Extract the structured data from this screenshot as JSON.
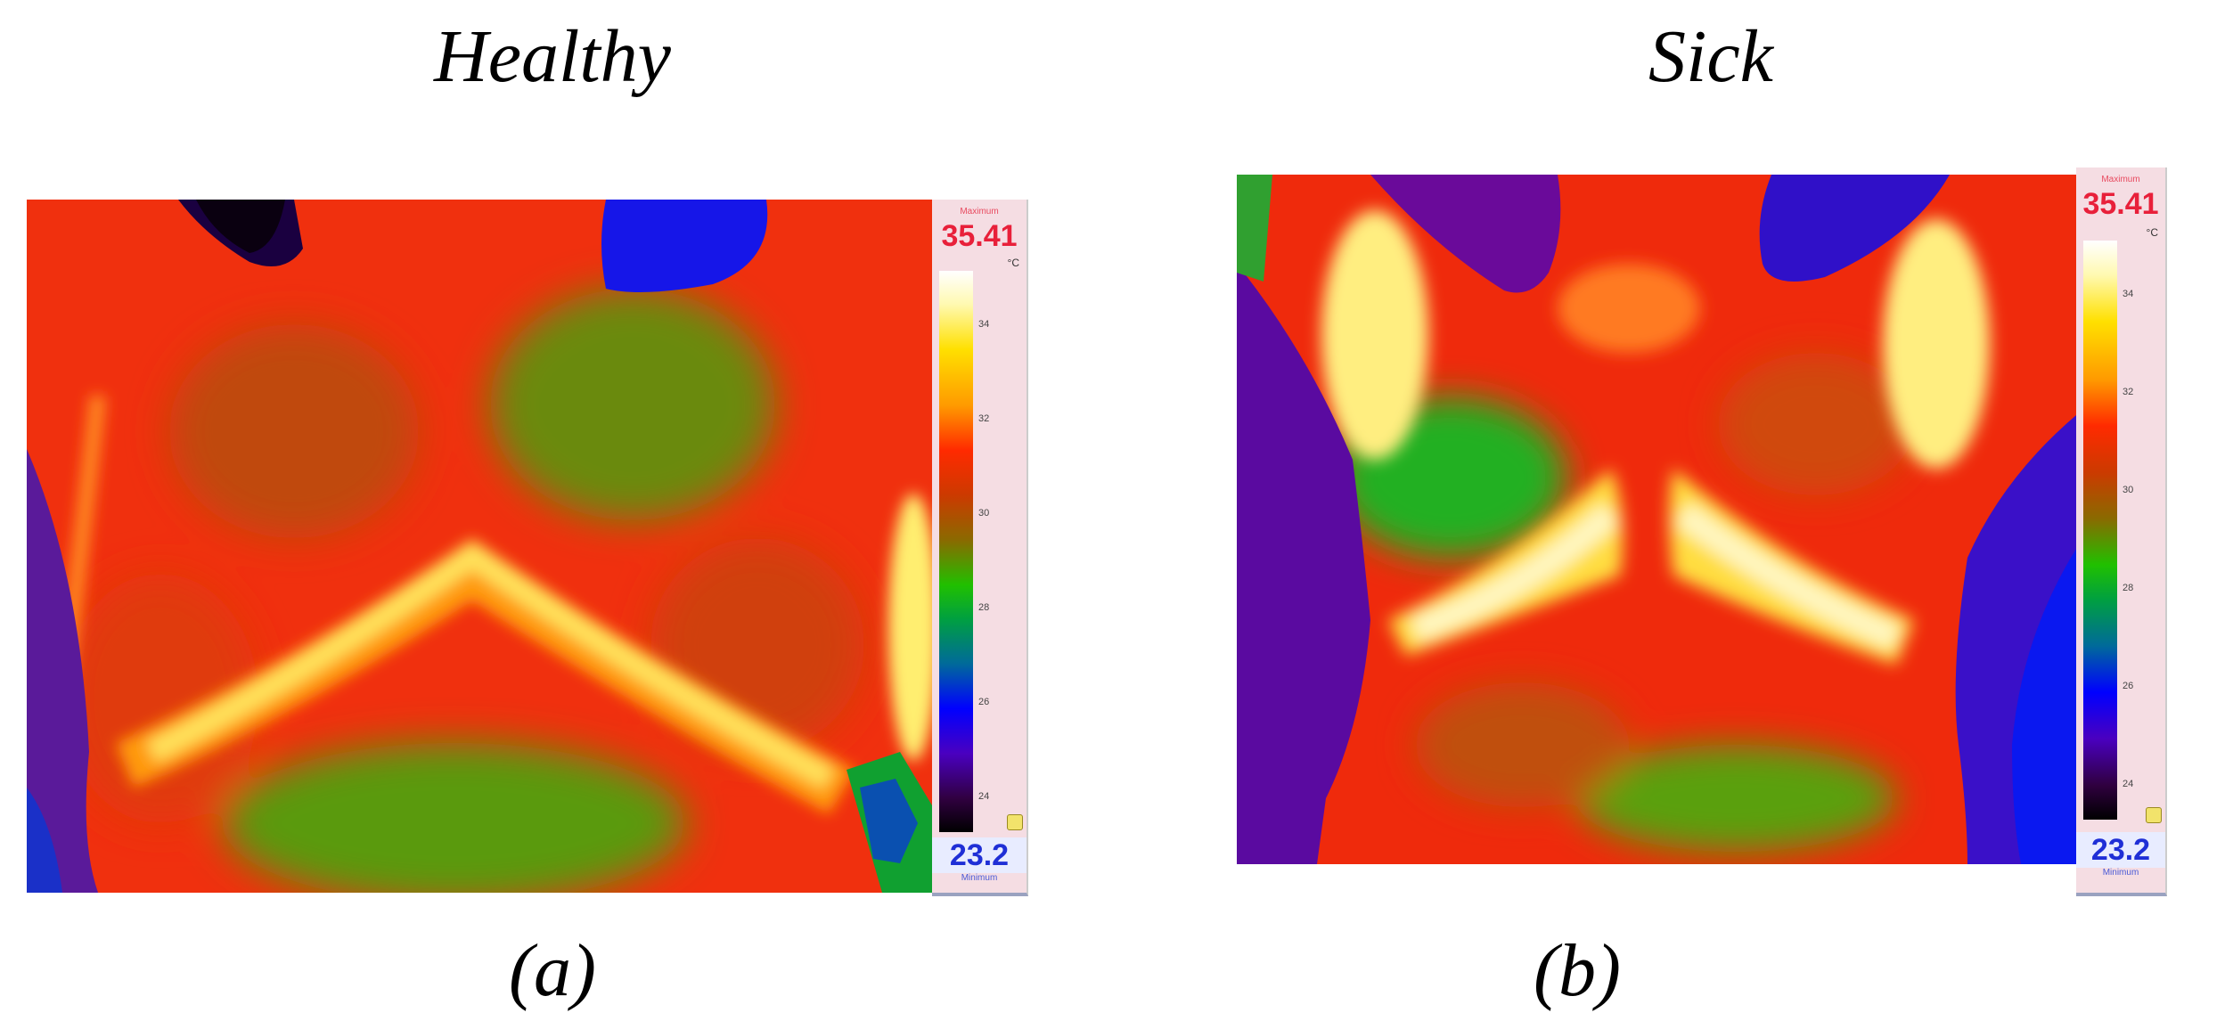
{
  "panels": [
    {
      "title": "Healthy",
      "caption": "(a)",
      "scale": {
        "max_label": "Maximum",
        "max_value": "35.41",
        "unit": "°C",
        "ticks": [
          "34",
          "32",
          "30",
          "28",
          "26",
          "24"
        ],
        "min_value": "23.2",
        "min_label": "Minimum"
      }
    },
    {
      "title": "Sick",
      "caption": "(b)",
      "scale": {
        "max_label": "Maximum",
        "max_value": "35.41",
        "unit": "°C",
        "ticks": [
          "34",
          "32",
          "30",
          "28",
          "26",
          "24"
        ],
        "min_value": "23.2",
        "min_label": "Minimum"
      }
    }
  ],
  "colors": {
    "hot": "#ffff60",
    "warm": "#ff3010",
    "mid": "#3ab000",
    "cool": "#1a1ae0",
    "cold": "#4a008a"
  }
}
